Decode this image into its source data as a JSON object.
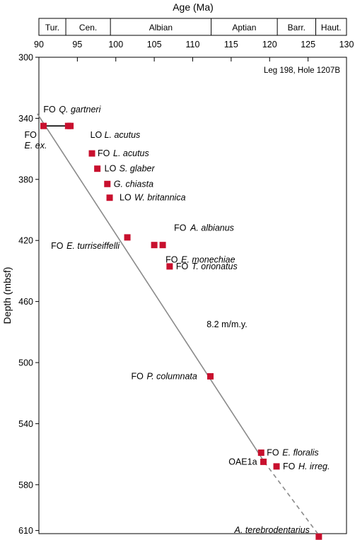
{
  "chart_data": {
    "type": "scatter",
    "title": "",
    "note": "Leg 198, Hole 1207B",
    "xlabel": "Age (Ma)",
    "ylabel": "Depth (mbsf)",
    "xlim": [
      90,
      130
    ],
    "ylim": [
      300,
      614
    ],
    "xticks": [
      90,
      95,
      100,
      105,
      110,
      115,
      120,
      125,
      130
    ],
    "yticks": [
      300,
      340,
      380,
      420,
      460,
      500,
      540,
      580,
      610
    ],
    "y_inverted": true,
    "x_axis_position": "top",
    "stages": [
      {
        "name": "Tur.",
        "start": 90,
        "end": 93.5
      },
      {
        "name": "Cen.",
        "start": 93.5,
        "end": 99.3
      },
      {
        "name": "Albian",
        "start": 99.3,
        "end": 112.4
      },
      {
        "name": "Aptian",
        "start": 112.4,
        "end": 121
      },
      {
        "name": "Barr.",
        "start": 121,
        "end": 126
      },
      {
        "name": "Haut.",
        "start": 126,
        "end": 130
      }
    ],
    "age_depth_line": {
      "solid": [
        [
          89.8,
          337
        ],
        [
          119.3,
          565
        ]
      ],
      "dashed": [
        [
          119.3,
          565
        ],
        [
          126.4,
          613
        ]
      ]
    },
    "rate_label": {
      "text": "8.2 m/m.y.",
      "x": 112,
      "y": 475
    },
    "range_bar": {
      "x": [
        90.6,
        94.0
      ],
      "y": 345
    },
    "series": [
      {
        "color": "#c8102e",
        "points": [
          {
            "x": 90.6,
            "y": 345,
            "prefix": "FO",
            "taxon": "E. ex."
          },
          {
            "x": 93.8,
            "y": 345,
            "prefix": "FO",
            "taxon": "Q. gartneri"
          },
          {
            "x": 94.1,
            "y": 345,
            "prefix": "LO",
            "taxon": "L. acutus"
          },
          {
            "x": 96.9,
            "y": 363,
            "prefix": "FO",
            "taxon": "L. acutus"
          },
          {
            "x": 97.6,
            "y": 373,
            "prefix": "LO",
            "taxon": "S. glaber"
          },
          {
            "x": 98.9,
            "y": 383,
            "prefix": "",
            "taxon": "G. chiasta"
          },
          {
            "x": 99.2,
            "y": 392,
            "prefix": "LO",
            "taxon": "W. britannica"
          },
          {
            "x": 101.5,
            "y": 418,
            "prefix": "FO",
            "taxon": "E. turriseiffelli"
          },
          {
            "x": 105.0,
            "y": 423,
            "prefix": "FO",
            "taxon": "E. monechiae"
          },
          {
            "x": 106.1,
            "y": 423,
            "prefix": "FO",
            "taxon": "A. albianus"
          },
          {
            "x": 107.0,
            "y": 437,
            "prefix": "FO",
            "taxon": "T. orionatus"
          },
          {
            "x": 112.3,
            "y": 509,
            "prefix": "FO",
            "taxon": "P. columnata"
          },
          {
            "x": 118.9,
            "y": 559,
            "prefix": "FO",
            "taxon": "E. floralis"
          },
          {
            "x": 119.2,
            "y": 565,
            "prefix": "",
            "taxon": "",
            "extra": "OAE1a"
          },
          {
            "x": 120.9,
            "y": 568,
            "prefix": "FO",
            "taxon": "H. irreg."
          },
          {
            "x": 126.4,
            "y": 614,
            "prefix": "",
            "taxon": "A. terebrodentarius"
          }
        ]
      }
    ]
  }
}
